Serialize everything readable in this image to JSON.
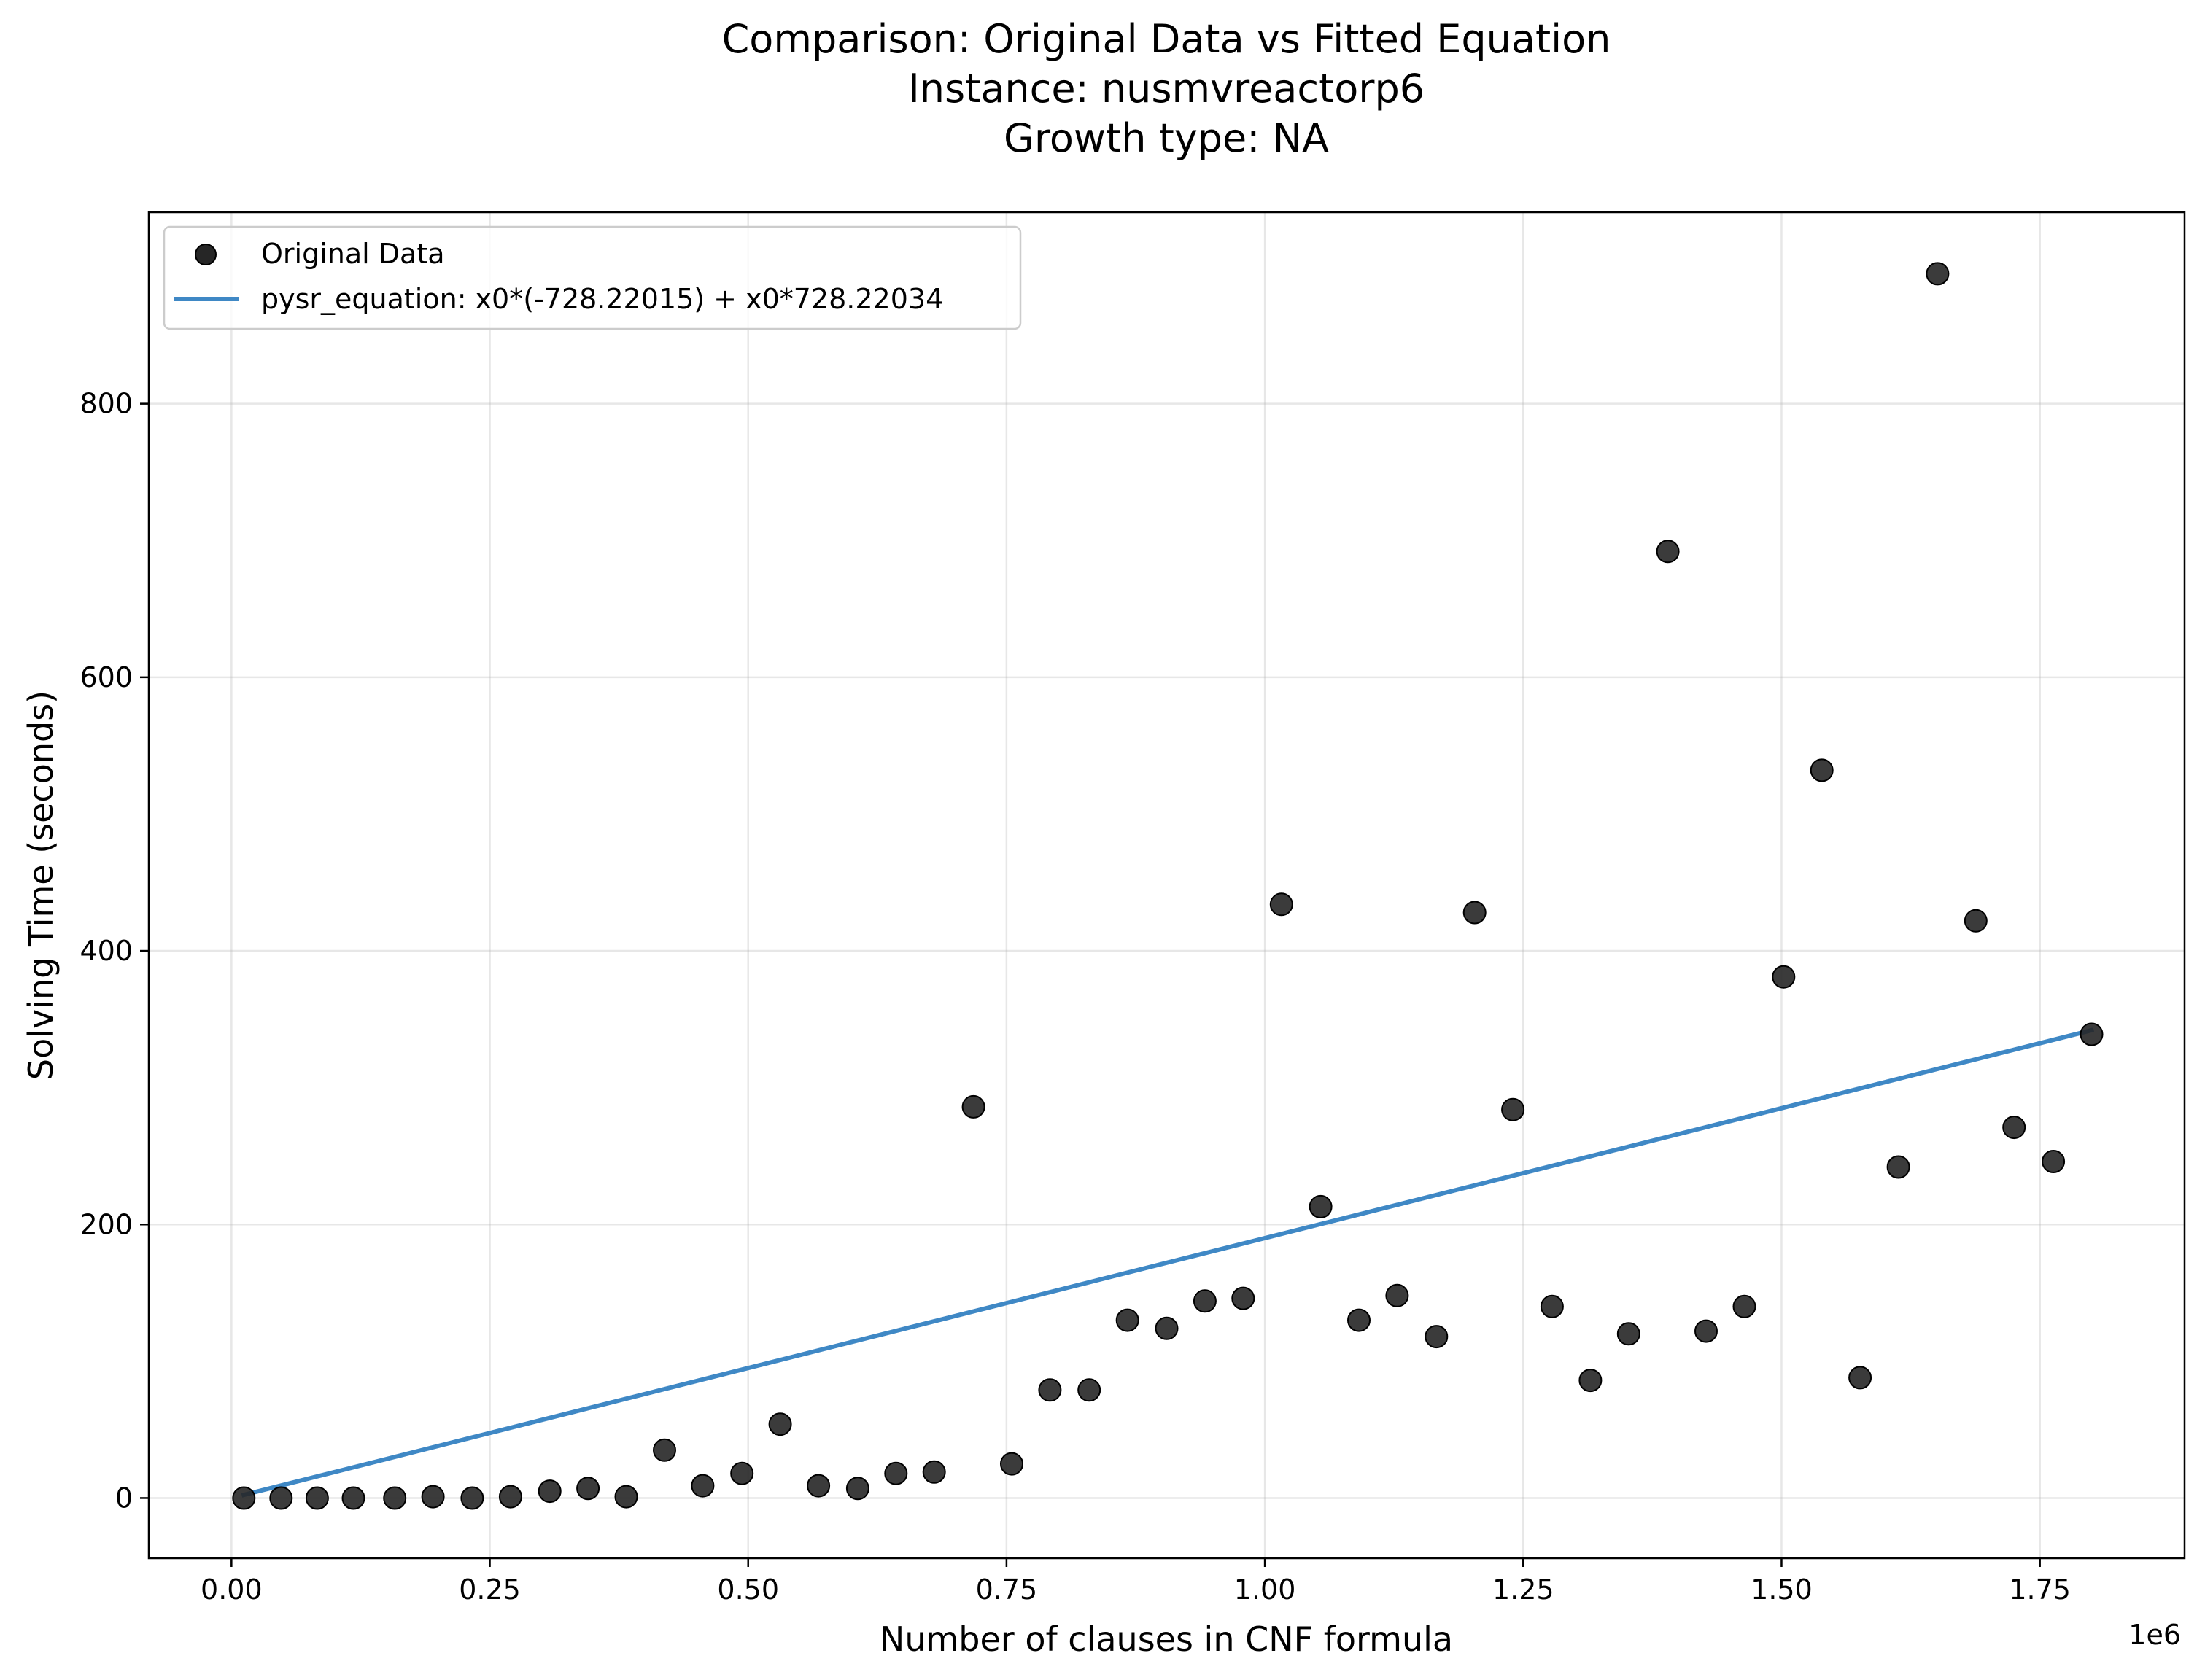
{
  "chart_data": {
    "type": "scatter",
    "title_lines": [
      "Comparison: Original Data vs Fitted Equation",
      "Instance: nusmvreactorp6",
      "Growth type: NA"
    ],
    "xlabel": "Number of clauses in CNF formula",
    "ylabel": "Solving Time (seconds)",
    "x_offset_label": "1e6",
    "x_scale": 1000000,
    "xlim": [
      -0.08,
      1.89
    ],
    "ylim": [
      -44,
      940
    ],
    "x_ticks": [
      0.0,
      0.25,
      0.5,
      0.75,
      1.0,
      1.25,
      1.5,
      1.75
    ],
    "x_tick_labels": [
      "0.00",
      "0.25",
      "0.50",
      "0.75",
      "1.00",
      "1.25",
      "1.50",
      "1.75"
    ],
    "y_ticks": [
      0,
      200,
      400,
      600,
      800
    ],
    "y_tick_labels": [
      "0",
      "200",
      "400",
      "600",
      "800"
    ],
    "grid": true,
    "legend_position": "upper left",
    "series": [
      {
        "name": "Original Data",
        "kind": "scatter",
        "color": "#262626",
        "x": [
          0.012,
          0.048,
          0.083,
          0.118,
          0.158,
          0.195,
          0.233,
          0.27,
          0.308,
          0.345,
          0.382,
          0.419,
          0.456,
          0.494,
          0.531,
          0.568,
          0.606,
          0.643,
          0.68,
          0.718,
          0.755,
          0.792,
          0.83,
          0.867,
          0.905,
          0.942,
          0.979,
          1.016,
          1.054,
          1.091,
          1.128,
          1.166,
          1.203,
          1.24,
          1.278,
          1.315,
          1.352,
          1.39,
          1.427,
          1.464,
          1.502,
          1.539,
          1.576,
          1.613,
          1.651,
          1.688,
          1.725,
          1.763,
          1.8
        ],
        "y": [
          0,
          0,
          0,
          0,
          0,
          1,
          0,
          1,
          5,
          7,
          1,
          35,
          9,
          18,
          54,
          9,
          7,
          18,
          19,
          286,
          25,
          79,
          79,
          130,
          124,
          144,
          146,
          434,
          213,
          130,
          148,
          118,
          428,
          284,
          140,
          86,
          120,
          692,
          122,
          140,
          381,
          532,
          88,
          242,
          895,
          422,
          271,
          246,
          339
        ]
      },
      {
        "name": "pysr_equation: x0*(-728.22015) + x0*728.22034",
        "kind": "line",
        "color": "#3f88c5",
        "x": [
          0.012,
          1.8
        ],
        "y": [
          2.3,
          342
        ]
      }
    ]
  }
}
